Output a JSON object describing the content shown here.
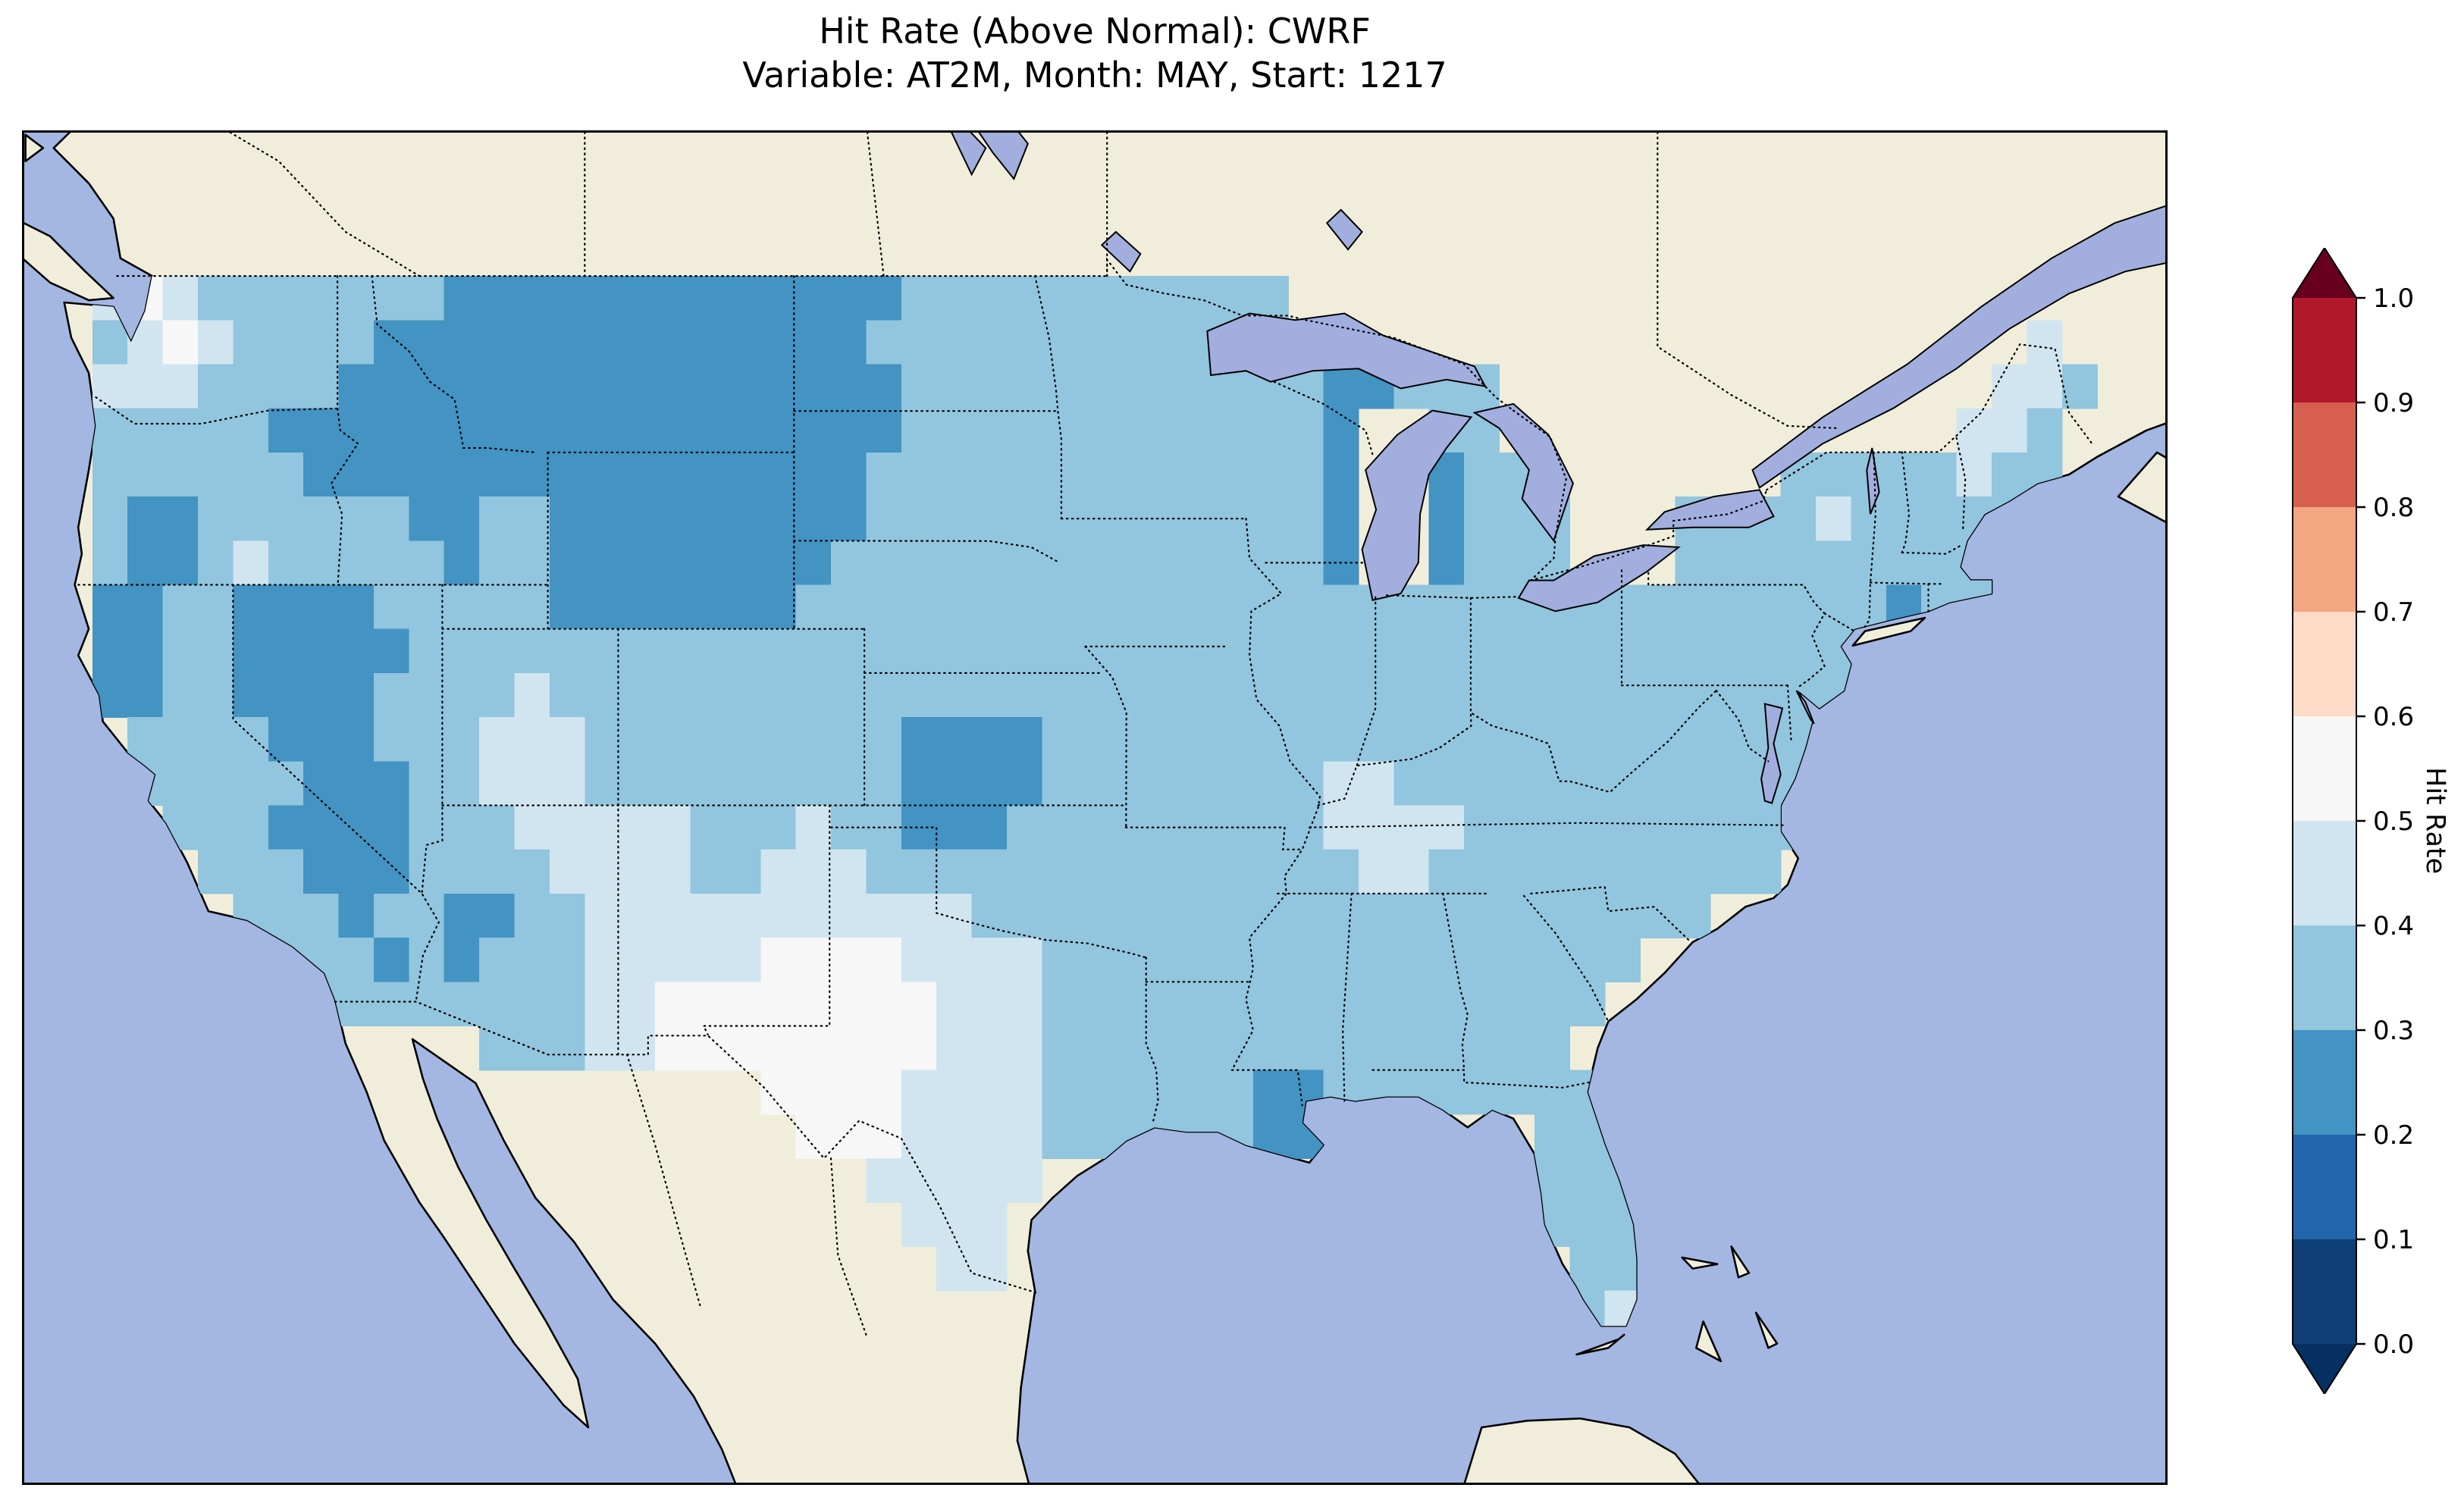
{
  "title": {
    "line1": "Hit Rate (Above Normal): CWRF",
    "line2": "Variable: AT2M, Month: MAY, Start: 1217"
  },
  "colorbar": {
    "label": "Hit Rate",
    "ticks": [
      "1.0",
      "0.9",
      "0.8",
      "0.7",
      "0.6",
      "0.5",
      "0.4",
      "0.3",
      "0.2",
      "0.1",
      "0.0"
    ],
    "segment_colors_bottom_to_top": [
      "#0e3f77",
      "#2166ac",
      "#4393c3",
      "#92c5de",
      "#d1e5f0",
      "#f7f7f7",
      "#fddbc7",
      "#f4a582",
      "#d6604d",
      "#b2182b"
    ],
    "under_arrow_color": "#053061",
    "over_arrow_color": "#67001f"
  },
  "map": {
    "ocean_color": "#a4b6e2",
    "land_color": "#f0eedb",
    "lake_color": "#a2aede",
    "coastline_color": "#000000",
    "state_border_style": "dotted black"
  },
  "chart_data": {
    "type": "heatmap",
    "metric": "Hit Rate (Above Normal)",
    "model": "CWRF",
    "variable": "AT2M",
    "month": "MAY",
    "start": "1217",
    "region": "Continental United States",
    "colorscale": {
      "0.2-0.3": "#4393c3",
      "0.3-0.4": "#92c5de",
      "0.4-0.5": "#d1e5f0",
      "0.5-0.6": "#f7f7f7"
    },
    "grid": {
      "lon_west_origin": -125,
      "lat_north_origin": 50,
      "cell_size_deg": 1,
      "ncols": 58,
      "nrows": 26,
      "encoding": {
        ".": "no data",
        "2": "hit rate 0.2-0.3",
        "3": "hit rate 0.3-0.4",
        "4": "hit rate 0.4-0.5",
        "5": "hit rate 0.5-0.6"
      },
      "rows": [
        [
          "..........",
          "..........",
          "..........",
          "..........",
          "..........",
          "........"
        ],
        [
          ".454333333",
          "3222222222",
          "2222333333",
          "33333.....",
          "..........",
          "........"
        ],
        [
          ".345433332",
          "2222222222",
          "2223333333",
          "33333.....",
          "..........",
          "......4."
        ],
        [
          ".444333322",
          "2222222222",
          "2222333333",
          "3333332233",
          "3.........",
          ".....443"
        ],
        [
          ".333332222",
          "2222222222",
          "2222333333",
          "3333332..3",
          "3.........",
          "....443."
        ],
        [
          ".333333222",
          "2222222222",
          "2223333333",
          "3333332..2",
          "33.......3",
          "3333433."
        ],
        [
          ".322333333",
          "2233222222",
          "2223333333",
          "3333332..2",
          "333...3333",
          "433333.."
        ],
        [
          ".322343333",
          "3233222222",
          "2233333333",
          "3333332..2",
          "333...3333",
          "33333..."
        ],
        [
          ".223322223",
          "3333222222",
          "2333333333",
          "3333333333",
          "3333333333",
          "33233..."
        ],
        [
          ".223322222",
          "3333333333",
          "3333333333",
          "3333333333",
          "3333333333",
          "33......"
        ],
        [
          ".223322223",
          "3334333333",
          "3333333333",
          "3333333333",
          "3333333333",
          "33......"
        ],
        [
          "..33332223",
          "3344433333",
          "3333222233",
          "3333333333",
          "3333333333",
          "........"
        ],
        [
          "..33333222",
          "3344433333",
          "3333222233",
          "3333334433",
          "3333333333",
          "........"
        ],
        [
          "...3332222",
          "3334444433",
          "3433222333",
          "3333334444",
          "3333333333",
          "........"
        ],
        [
          "....333222",
          "3333444433",
          "4443333333",
          "3333333443",
          "333333333.",
          "........"
        ],
        [
          ".....33323",
          "3223344444",
          "4444443333",
          "3333333333",
          "3333333...",
          "........"
        ],
        [
          "......3332",
          "3233344444",
          "5555444433",
          "3333333333",
          "33333.....",
          "........"
        ],
        [
          ".......333",
          "3333344555",
          "5555544433",
          "3333333333",
          "3333......",
          "........"
        ],
        [
          "..........",
          "..33344555",
          "5555544433",
          "3333333333",
          "333.......",
          "........"
        ],
        [
          "..........",
          "..........",
          "5555444433",
          "3333223333",
          "33333.....",
          "........"
        ],
        [
          "..........",
          "..........",
          ".555444433",
          "333322....",
          "..333.....",
          "........"
        ],
        [
          "..........",
          "..........",
          "...44444..",
          "..........",
          "..333.....",
          "........"
        ],
        [
          "..........",
          "..........",
          "....444...",
          "..........",
          "..333.....",
          "........"
        ],
        [
          "..........",
          "..........",
          ".....44...",
          "..........",
          "...33.....",
          "........"
        ],
        [
          "..........",
          "..........",
          "..........",
          "..........",
          "...34.....",
          "........"
        ],
        [
          "..........",
          "..........",
          "..........",
          "..........",
          "..........",
          "........"
        ]
      ]
    }
  }
}
